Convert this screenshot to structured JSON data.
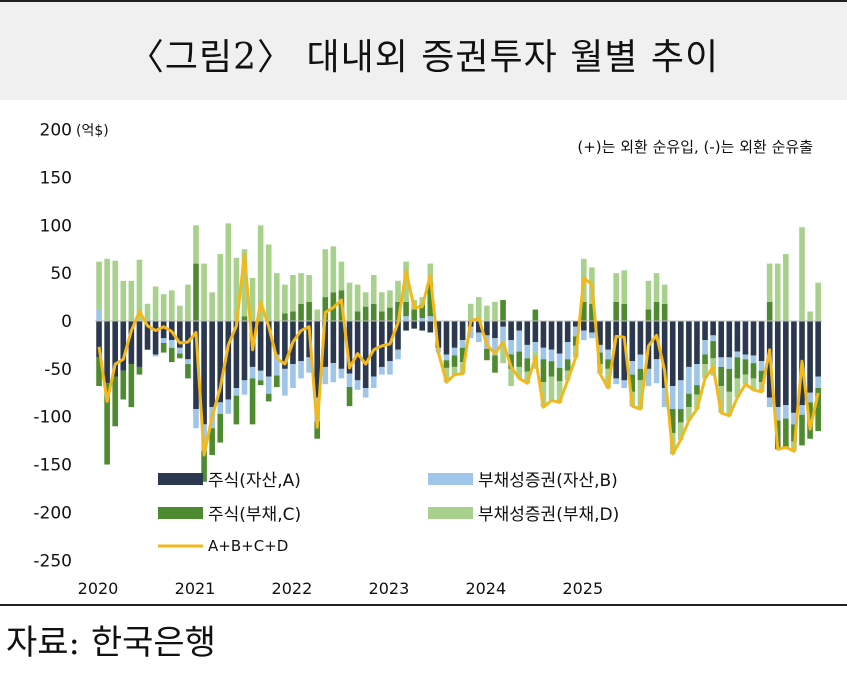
{
  "header": {
    "title": "〈그림2〉 대내외 증권투자 월별 추이"
  },
  "footer": {
    "source": "자료: 한국은행"
  },
  "colors": {
    "stock_asset": "#2b3850",
    "bond_asset": "#9fc6e8",
    "stock_liab": "#4e8a2f",
    "bond_liab": "#a9d18e",
    "total_line": "#f2b81c"
  },
  "chart_data": {
    "type": "bar",
    "stacked": true,
    "unit_label": "(억$)",
    "annotation": "(+)는 외환 순유입, (-)는 외환 순유출",
    "ylim": [
      -250,
      200
    ],
    "yticks": [
      200,
      150,
      100,
      50,
      0,
      -50,
      -100,
      -150,
      -200,
      -250
    ],
    "year_labels": [
      "2020",
      "2021",
      "2022",
      "2023",
      "2024",
      "2025"
    ],
    "grid": false,
    "legend_position": "bottom-left",
    "months_per_year": 12,
    "series": [
      {
        "name": "주식(자산,A)",
        "kind": "bar",
        "values": [
          -38,
          -65,
          -58,
          -52,
          -45,
          -48,
          -30,
          -35,
          -18,
          -20,
          -28,
          -40,
          -92,
          -108,
          -90,
          -85,
          -82,
          -70,
          -62,
          -48,
          -52,
          -58,
          -35,
          -50,
          -45,
          -42,
          -38,
          -80,
          -48,
          -44,
          -50,
          -55,
          -62,
          -70,
          -58,
          -48,
          -42,
          -30,
          -10,
          -8,
          -10,
          -12,
          -28,
          -35,
          -28,
          -20,
          -6,
          -12,
          -15,
          -18,
          -6,
          -20,
          -10,
          -25,
          -22,
          -28,
          -30,
          -34,
          -22,
          -6,
          -10,
          -12,
          -25,
          -30,
          -60,
          -62,
          -42,
          -35,
          -50,
          -40,
          -70,
          -68,
          -62,
          -48,
          -45,
          -20,
          -15,
          -38,
          -38,
          -32,
          -35,
          -36,
          -42,
          -80,
          -90,
          -88,
          -96,
          -88,
          -75,
          -58
        ]
      },
      {
        "name": "부채성증권(자산,B)",
        "kind": "bar",
        "values": [
          12,
          0,
          0,
          0,
          0,
          0,
          0,
          -2,
          -5,
          -8,
          -6,
          -5,
          -20,
          -28,
          -22,
          -12,
          -15,
          -8,
          -15,
          -12,
          -10,
          -18,
          -22,
          -28,
          -25,
          -18,
          -16,
          -25,
          -18,
          -20,
          -10,
          -14,
          -10,
          -10,
          -12,
          -8,
          -14,
          -10,
          5,
          0,
          3,
          5,
          -5,
          -6,
          -8,
          -8,
          -12,
          -10,
          -14,
          -18,
          -18,
          -15,
          -22,
          -14,
          -10,
          -12,
          -12,
          -15,
          -18,
          -10,
          -10,
          -6,
          -8,
          -10,
          -6,
          -8,
          -14,
          -15,
          -18,
          -25,
          -20,
          -24,
          -30,
          -28,
          -22,
          -15,
          -6,
          -10,
          -12,
          -6,
          -5,
          -8,
          -10,
          -10,
          -14,
          -14,
          -12,
          -10,
          -10,
          -12
        ]
      },
      {
        "name": "주식(부채,C)",
        "kind": "bar",
        "values": [
          -30,
          -85,
          -52,
          -30,
          -45,
          -8,
          0,
          0,
          -10,
          -15,
          -5,
          -15,
          60,
          -32,
          -28,
          -30,
          0,
          -30,
          5,
          -48,
          -5,
          -8,
          -12,
          8,
          10,
          18,
          20,
          -18,
          25,
          30,
          32,
          -20,
          10,
          15,
          18,
          10,
          14,
          20,
          15,
          12,
          14,
          35,
          0,
          -8,
          -12,
          -15,
          0,
          0,
          -12,
          -18,
          22,
          -15,
          -16,
          -14,
          12,
          -24,
          -16,
          -14,
          -12,
          -10,
          20,
          18,
          -12,
          -10,
          20,
          18,
          -18,
          -12,
          12,
          20,
          18,
          -25,
          -14,
          -14,
          -10,
          -10,
          -18,
          -20,
          -24,
          -22,
          -16,
          -16,
          -12,
          20,
          -30,
          -30,
          -18,
          -32,
          -38,
          -45
        ]
      },
      {
        "name": "부채성증권(부채,D)",
        "kind": "bar",
        "values": [
          50,
          65,
          63,
          42,
          42,
          64,
          18,
          36,
          28,
          32,
          16,
          38,
          40,
          60,
          30,
          70,
          102,
          66,
          70,
          45,
          100,
          80,
          50,
          30,
          38,
          32,
          28,
          12,
          50,
          48,
          30,
          40,
          28,
          15,
          30,
          20,
          18,
          22,
          42,
          10,
          8,
          20,
          0,
          -15,
          -8,
          -12,
          18,
          25,
          16,
          20,
          -20,
          -18,
          -12,
          -12,
          -18,
          -26,
          -25,
          -22,
          -10,
          -12,
          45,
          38,
          -10,
          -20,
          30,
          35,
          -15,
          -30,
          30,
          30,
          20,
          -22,
          -18,
          -14,
          -15,
          -15,
          -18,
          -28,
          -25,
          -20,
          -10,
          -12,
          -10,
          40,
          60,
          70,
          -10,
          98,
          10,
          40
        ]
      },
      {
        "name": "A+B+C+D",
        "kind": "line",
        "values": [
          -27,
          -84,
          -45,
          -40,
          -10,
          10,
          -5,
          -10,
          -6,
          -11,
          -23,
          -22,
          -12,
          -140,
          -100,
          -70,
          -25,
          -5,
          70,
          -30,
          20,
          -6,
          -39,
          -45,
          -22,
          -10,
          -6,
          -111,
          9,
          14,
          22,
          -49,
          -34,
          -45,
          -30,
          -26,
          -24,
          -2,
          52,
          14,
          15,
          48,
          -33,
          -64,
          -56,
          -55,
          0,
          3,
          -25,
          -34,
          -22,
          -48,
          -60,
          -65,
          -38,
          -90,
          -83,
          -85,
          -62,
          -38,
          45,
          38,
          -55,
          -70,
          -16,
          -17,
          -89,
          -92,
          -26,
          -15,
          -52,
          -139,
          -124,
          -104,
          -92,
          -60,
          -48,
          -96,
          -99,
          -80,
          -66,
          -72,
          -74,
          -30,
          -134,
          -132,
          -136,
          -42,
          -113,
          -75
        ]
      }
    ]
  }
}
